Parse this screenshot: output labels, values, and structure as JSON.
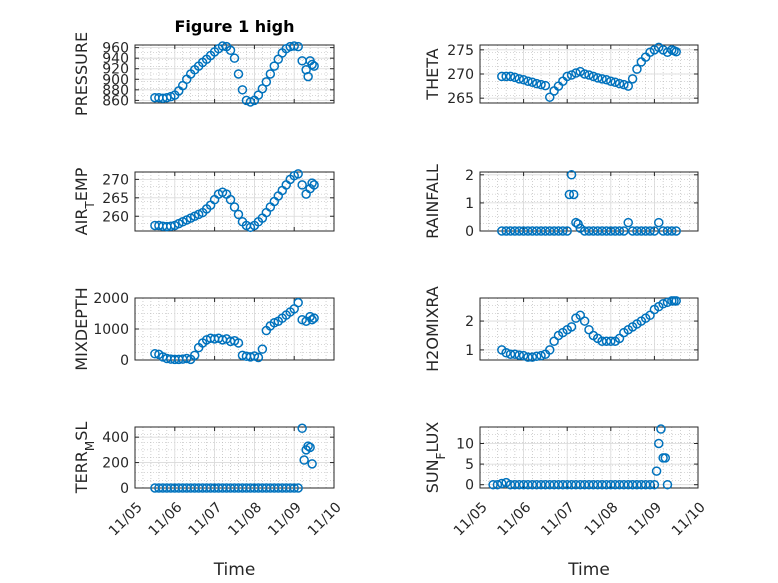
{
  "figure": {
    "title": "Figure 1 high",
    "xlabel": "Time"
  },
  "colors": {
    "marker": "#0072BD",
    "axis": "#262626",
    "grid": "#b0b0b0"
  },
  "chart_data": [
    {
      "type": "scatter",
      "ylabel": "PRESSURE",
      "title": "Figure 1 high",
      "col": 0,
      "row": 0,
      "xlim": [
        0,
        5
      ],
      "ylim": [
        855,
        965
      ],
      "yticks": [
        860,
        880,
        900,
        920,
        940,
        960
      ],
      "x": [
        0.5,
        0.6,
        0.7,
        0.8,
        0.9,
        1.0,
        1.1,
        1.2,
        1.3,
        1.4,
        1.5,
        1.6,
        1.7,
        1.8,
        1.9,
        2.0,
        2.1,
        2.2,
        2.3,
        2.4,
        2.5,
        2.6,
        2.7,
        2.8,
        2.9,
        3.0,
        3.1,
        3.2,
        3.3,
        3.4,
        3.5,
        3.6,
        3.7,
        3.8,
        3.9,
        4.0,
        4.1,
        4.2,
        4.3,
        4.35,
        4.4,
        4.45,
        4.5
      ],
      "y": [
        865,
        865,
        864,
        865,
        867,
        870,
        878,
        888,
        900,
        910,
        918,
        925,
        932,
        938,
        945,
        952,
        958,
        963,
        962,
        955,
        940,
        910,
        880,
        860,
        857,
        860,
        870,
        882,
        895,
        910,
        925,
        938,
        950,
        958,
        962,
        963,
        962,
        935,
        918,
        905,
        935,
        928,
        925
      ]
    },
    {
      "type": "scatter",
      "ylabel": "THETA",
      "col": 1,
      "row": 0,
      "xlim": [
        0,
        5
      ],
      "ylim": [
        264,
        276
      ],
      "yticks": [
        265,
        270,
        275
      ],
      "x": [
        0.5,
        0.6,
        0.7,
        0.8,
        0.9,
        1.0,
        1.1,
        1.2,
        1.3,
        1.4,
        1.5,
        1.6,
        1.7,
        1.8,
        1.9,
        2.0,
        2.1,
        2.2,
        2.3,
        2.4,
        2.5,
        2.6,
        2.7,
        2.8,
        2.9,
        3.0,
        3.1,
        3.2,
        3.3,
        3.4,
        3.5,
        3.6,
        3.7,
        3.8,
        3.9,
        4.0,
        4.1,
        4.2,
        4.3,
        4.4,
        4.45,
        4.5
      ],
      "y": [
        269.5,
        269.5,
        269.5,
        269.3,
        269.0,
        268.8,
        268.5,
        268.3,
        268.0,
        267.8,
        267.6,
        265.2,
        266.5,
        267.5,
        268.5,
        269.5,
        269.8,
        270.2,
        270.5,
        270.0,
        269.8,
        269.5,
        269.2,
        269.0,
        268.8,
        268.5,
        268.3,
        268.0,
        267.8,
        267.5,
        269.0,
        271.0,
        272.5,
        273.5,
        274.5,
        275.0,
        275.5,
        275.0,
        274.5,
        275.0,
        274.8,
        274.6
      ]
    },
    {
      "type": "scatter",
      "ylabel": "AIR_TEMP",
      "col": 0,
      "row": 1,
      "xlim": [
        0,
        5
      ],
      "ylim": [
        256,
        272
      ],
      "yticks": [
        260,
        265,
        270
      ],
      "x": [
        0.5,
        0.6,
        0.7,
        0.8,
        0.9,
        1.0,
        1.1,
        1.2,
        1.3,
        1.4,
        1.5,
        1.6,
        1.7,
        1.8,
        1.9,
        2.0,
        2.1,
        2.2,
        2.3,
        2.4,
        2.5,
        2.6,
        2.7,
        2.8,
        2.9,
        3.0,
        3.1,
        3.2,
        3.3,
        3.4,
        3.5,
        3.6,
        3.7,
        3.8,
        3.9,
        4.0,
        4.1,
        4.2,
        4.3,
        4.4,
        4.45,
        4.5
      ],
      "y": [
        257.5,
        257.5,
        257.3,
        257.2,
        257.3,
        257.5,
        258.0,
        258.5,
        259.0,
        259.5,
        260.0,
        260.5,
        261.0,
        262.0,
        263.0,
        264.5,
        266.0,
        266.5,
        266.0,
        264.5,
        262.5,
        260.5,
        258.5,
        257.5,
        257.0,
        257.5,
        258.5,
        259.5,
        261.0,
        262.5,
        264.0,
        265.5,
        267.0,
        268.5,
        270.0,
        271.0,
        271.5,
        268.5,
        266.0,
        267.5,
        269.0,
        268.5
      ]
    },
    {
      "type": "scatter",
      "ylabel": "RAINFALL",
      "col": 1,
      "row": 1,
      "xlim": [
        0,
        5
      ],
      "ylim": [
        0,
        2.1
      ],
      "yticks": [
        0,
        1,
        2
      ],
      "x": [
        0.5,
        0.6,
        0.7,
        0.8,
        0.9,
        1.0,
        1.1,
        1.2,
        1.3,
        1.4,
        1.5,
        1.6,
        1.7,
        1.8,
        1.9,
        2.0,
        2.05,
        2.1,
        2.15,
        2.2,
        2.25,
        2.3,
        2.4,
        2.5,
        2.6,
        2.7,
        2.8,
        2.9,
        3.0,
        3.1,
        3.2,
        3.3,
        3.4,
        3.5,
        3.6,
        3.7,
        3.8,
        3.9,
        4.0,
        4.1,
        4.2,
        4.3,
        4.4,
        4.5
      ],
      "y": [
        0,
        0,
        0,
        0,
        0,
        0,
        0,
        0,
        0,
        0,
        0,
        0,
        0,
        0,
        0,
        0,
        1.3,
        2.0,
        1.3,
        0.3,
        0.25,
        0.1,
        0,
        0,
        0,
        0,
        0,
        0,
        0,
        0,
        0,
        0,
        0.3,
        0,
        0,
        0,
        0,
        0,
        0,
        0.3,
        0,
        0,
        0,
        0
      ]
    },
    {
      "type": "scatter",
      "ylabel": "MIXDEPTH",
      "col": 0,
      "row": 2,
      "xlim": [
        0,
        5
      ],
      "ylim": [
        0,
        2000
      ],
      "yticks": [
        0,
        1000,
        2000
      ],
      "x": [
        0.5,
        0.6,
        0.7,
        0.8,
        0.9,
        1.0,
        1.1,
        1.2,
        1.3,
        1.4,
        1.5,
        1.6,
        1.7,
        1.8,
        1.9,
        2.0,
        2.1,
        2.2,
        2.3,
        2.4,
        2.5,
        2.6,
        2.7,
        2.8,
        2.9,
        3.0,
        3.1,
        3.2,
        3.3,
        3.4,
        3.5,
        3.6,
        3.7,
        3.8,
        3.9,
        4.0,
        4.1,
        4.2,
        4.3,
        4.4,
        4.45,
        4.5
      ],
      "y": [
        200,
        180,
        100,
        50,
        30,
        20,
        20,
        30,
        50,
        20,
        150,
        400,
        550,
        650,
        700,
        680,
        700,
        650,
        680,
        600,
        620,
        550,
        150,
        120,
        100,
        130,
        80,
        350,
        950,
        1100,
        1200,
        1250,
        1350,
        1450,
        1550,
        1650,
        1850,
        1300,
        1250,
        1400,
        1300,
        1350
      ]
    },
    {
      "type": "scatter",
      "ylabel": "H2OMIXRA",
      "col": 1,
      "row": 2,
      "xlim": [
        0,
        5
      ],
      "ylim": [
        0.65,
        2.8
      ],
      "yticks": [
        1,
        2
      ],
      "x": [
        0.5,
        0.6,
        0.7,
        0.8,
        0.9,
        1.0,
        1.1,
        1.2,
        1.3,
        1.4,
        1.5,
        1.6,
        1.7,
        1.8,
        1.9,
        2.0,
        2.1,
        2.2,
        2.3,
        2.4,
        2.5,
        2.6,
        2.7,
        2.8,
        2.9,
        3.0,
        3.1,
        3.2,
        3.3,
        3.4,
        3.5,
        3.6,
        3.7,
        3.8,
        3.9,
        4.0,
        4.1,
        4.2,
        4.3,
        4.4,
        4.45,
        4.5
      ],
      "y": [
        1.0,
        0.9,
        0.85,
        0.85,
        0.82,
        0.8,
        0.75,
        0.75,
        0.78,
        0.8,
        0.85,
        1.0,
        1.3,
        1.5,
        1.6,
        1.7,
        1.8,
        2.1,
        2.2,
        2.0,
        1.7,
        1.5,
        1.4,
        1.3,
        1.3,
        1.3,
        1.3,
        1.4,
        1.6,
        1.7,
        1.8,
        1.9,
        2.0,
        2.1,
        2.2,
        2.4,
        2.5,
        2.6,
        2.65,
        2.7,
        2.7,
        2.7
      ]
    },
    {
      "type": "scatter",
      "ylabel": "TERR_MSL",
      "col": 0,
      "row": 3,
      "xlim": [
        0,
        5
      ],
      "ylim": [
        0,
        480
      ],
      "yticks": [
        0,
        200,
        400
      ],
      "x": [
        0.5,
        0.6,
        0.7,
        0.8,
        0.9,
        1.0,
        1.1,
        1.2,
        1.3,
        1.4,
        1.5,
        1.6,
        1.7,
        1.8,
        1.9,
        2.0,
        2.1,
        2.2,
        2.3,
        2.4,
        2.5,
        2.6,
        2.7,
        2.8,
        2.9,
        3.0,
        3.1,
        3.2,
        3.3,
        3.4,
        3.5,
        3.6,
        3.7,
        3.8,
        3.9,
        4.0,
        4.1,
        4.2,
        4.25,
        4.3,
        4.35,
        4.4,
        4.45
      ],
      "y": [
        0,
        0,
        0,
        0,
        0,
        0,
        0,
        0,
        0,
        0,
        0,
        0,
        0,
        0,
        0,
        0,
        0,
        0,
        0,
        0,
        0,
        0,
        0,
        0,
        0,
        0,
        0,
        0,
        0,
        0,
        0,
        0,
        0,
        0,
        0,
        0,
        0,
        470,
        220,
        300,
        330,
        320,
        190
      ]
    },
    {
      "type": "scatter",
      "ylabel": "SUN_FLUX",
      "col": 1,
      "row": 3,
      "xlim": [
        0,
        5
      ],
      "ylim": [
        -0.8,
        14
      ],
      "yticks": [
        0,
        5,
        10
      ],
      "x": [
        0.3,
        0.4,
        0.5,
        0.6,
        0.7,
        0.8,
        0.9,
        1.0,
        1.1,
        1.2,
        1.3,
        1.4,
        1.5,
        1.6,
        1.7,
        1.8,
        1.9,
        2.0,
        2.1,
        2.2,
        2.3,
        2.4,
        2.5,
        2.6,
        2.7,
        2.8,
        2.9,
        3.0,
        3.1,
        3.2,
        3.3,
        3.4,
        3.5,
        3.6,
        3.7,
        3.8,
        3.9,
        4.0,
        4.05,
        4.1,
        4.15,
        4.2,
        4.25,
        4.3
      ],
      "y": [
        0,
        0,
        0.3,
        0.5,
        0,
        0,
        0,
        0,
        0,
        0,
        0,
        0,
        0,
        0,
        0,
        0,
        0,
        0,
        0,
        0,
        0,
        0,
        0,
        0,
        0,
        0,
        0,
        0,
        0,
        0,
        0,
        0,
        0,
        0,
        0,
        0,
        0,
        0,
        3.3,
        10,
        13.5,
        6.5,
        6.5,
        0
      ]
    }
  ],
  "xticks": [
    "11/05",
    "11/06",
    "11/07",
    "11/08",
    "11/09",
    "11/10"
  ]
}
